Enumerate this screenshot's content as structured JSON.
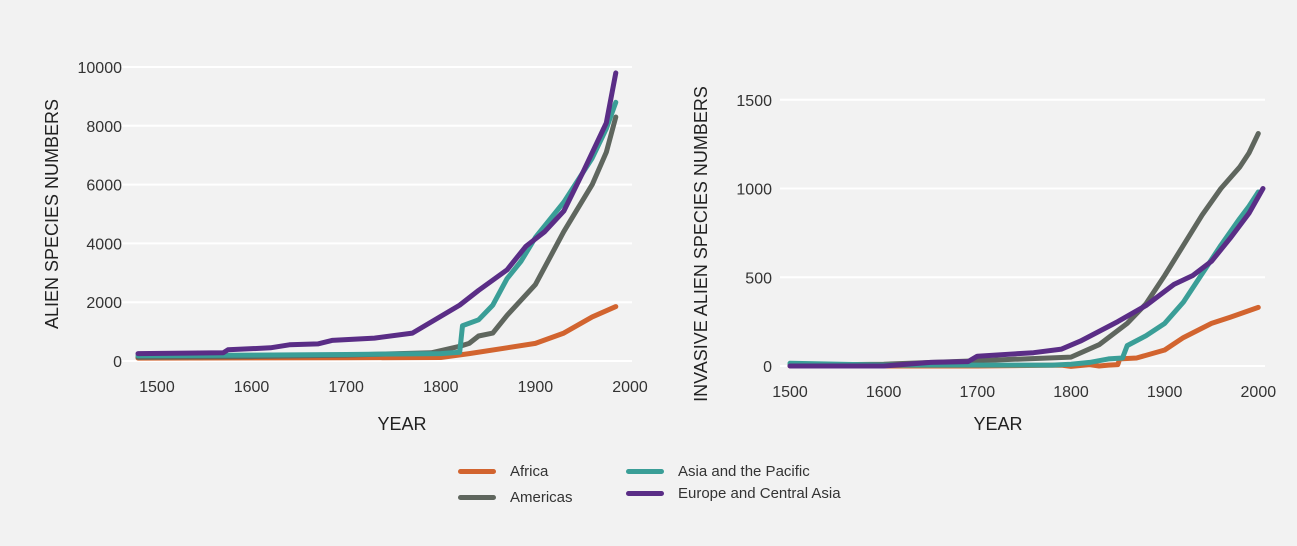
{
  "colors": {
    "Africa": "#d2642f",
    "Americas": "#5f665e",
    "Asia and the Pacific": "#3a9e97",
    "Europe and Central Asia": "#5a2d86"
  },
  "legend": [
    "Africa",
    "Americas",
    "Asia and the Pacific",
    "Europe and Central Asia"
  ],
  "chart_data": [
    {
      "type": "line",
      "xlabel": "YEAR",
      "ylabel": "ALIEN SPECIES NUMBERS",
      "xlim": [
        1480,
        2000
      ],
      "ylim": [
        0,
        10000
      ],
      "xticks": [
        1500,
        1600,
        1700,
        1800,
        1900,
        2000
      ],
      "yticks": [
        0,
        2000,
        4000,
        6000,
        8000,
        10000
      ],
      "grid": true,
      "series": [
        {
          "name": "Africa",
          "x": [
            1480,
            1600,
            1700,
            1800,
            1830,
            1870,
            1900,
            1930,
            1960,
            1985
          ],
          "y": [
            100,
            105,
            110,
            120,
            250,
            450,
            600,
            950,
            1500,
            1850
          ]
        },
        {
          "name": "Americas",
          "x": [
            1480,
            1600,
            1700,
            1790,
            1820,
            1830,
            1840,
            1855,
            1870,
            1900,
            1930,
            1960,
            1975,
            1985
          ],
          "y": [
            130,
            150,
            200,
            280,
            500,
            600,
            850,
            950,
            1550,
            2600,
            4400,
            6000,
            7100,
            8300
          ]
        },
        {
          "name": "Asia and the Pacific",
          "x": [
            1480,
            1600,
            1700,
            1800,
            1820,
            1823,
            1840,
            1855,
            1870,
            1885,
            1900,
            1930,
            1960,
            1975,
            1985
          ],
          "y": [
            180,
            200,
            220,
            250,
            300,
            1200,
            1400,
            1900,
            2800,
            3400,
            4200,
            5400,
            6900,
            7900,
            8800
          ]
        },
        {
          "name": "Europe and Central Asia",
          "x": [
            1480,
            1570,
            1575,
            1620,
            1640,
            1670,
            1685,
            1730,
            1770,
            1820,
            1840,
            1870,
            1890,
            1910,
            1930,
            1950,
            1975,
            1985
          ],
          "y": [
            250,
            280,
            380,
            450,
            550,
            580,
            700,
            780,
            950,
            1900,
            2400,
            3100,
            3900,
            4400,
            5100,
            6400,
            8100,
            9800
          ]
        }
      ]
    },
    {
      "type": "line",
      "xlabel": "YEAR",
      "ylabel": "INVASIVE ALIEN SPECIES NUMBERS",
      "xlim": [
        1500,
        2005
      ],
      "ylim": [
        0,
        1600
      ],
      "xticks": [
        1500,
        1600,
        1700,
        1800,
        1900,
        2000
      ],
      "yticks": [
        0,
        500,
        1000,
        1500
      ],
      "grid": true,
      "series": [
        {
          "name": "Africa",
          "x": [
            1500,
            1600,
            1700,
            1790,
            1800,
            1820,
            1830,
            1840,
            1850,
            1852,
            1870,
            1900,
            1920,
            1950,
            1970,
            2000
          ],
          "y": [
            0,
            0,
            0,
            5,
            -2,
            8,
            0,
            5,
            8,
            40,
            45,
            90,
            160,
            240,
            275,
            330
          ]
        },
        {
          "name": "Americas",
          "x": [
            1500,
            1600,
            1700,
            1800,
            1830,
            1860,
            1880,
            1900,
            1920,
            1940,
            1960,
            1980,
            1990,
            2000
          ],
          "y": [
            5,
            10,
            30,
            50,
            120,
            240,
            350,
            510,
            680,
            850,
            1000,
            1120,
            1200,
            1310
          ]
        },
        {
          "name": "Asia and the Pacific",
          "x": [
            1500,
            1600,
            1700,
            1780,
            1800,
            1820,
            1840,
            1855,
            1860,
            1880,
            1900,
            1920,
            1940,
            1960,
            1980,
            1990,
            2000
          ],
          "y": [
            15,
            5,
            5,
            5,
            10,
            20,
            40,
            45,
            115,
            170,
            240,
            360,
            520,
            680,
            830,
            900,
            980
          ]
        },
        {
          "name": "Europe and Central Asia",
          "x": [
            1500,
            1600,
            1650,
            1690,
            1700,
            1760,
            1790,
            1810,
            1830,
            1850,
            1880,
            1900,
            1910,
            1930,
            1950,
            1970,
            1990,
            2005
          ],
          "y": [
            0,
            0,
            20,
            25,
            55,
            75,
            95,
            140,
            195,
            250,
            340,
            420,
            460,
            510,
            590,
            720,
            860,
            1000
          ]
        }
      ]
    }
  ]
}
